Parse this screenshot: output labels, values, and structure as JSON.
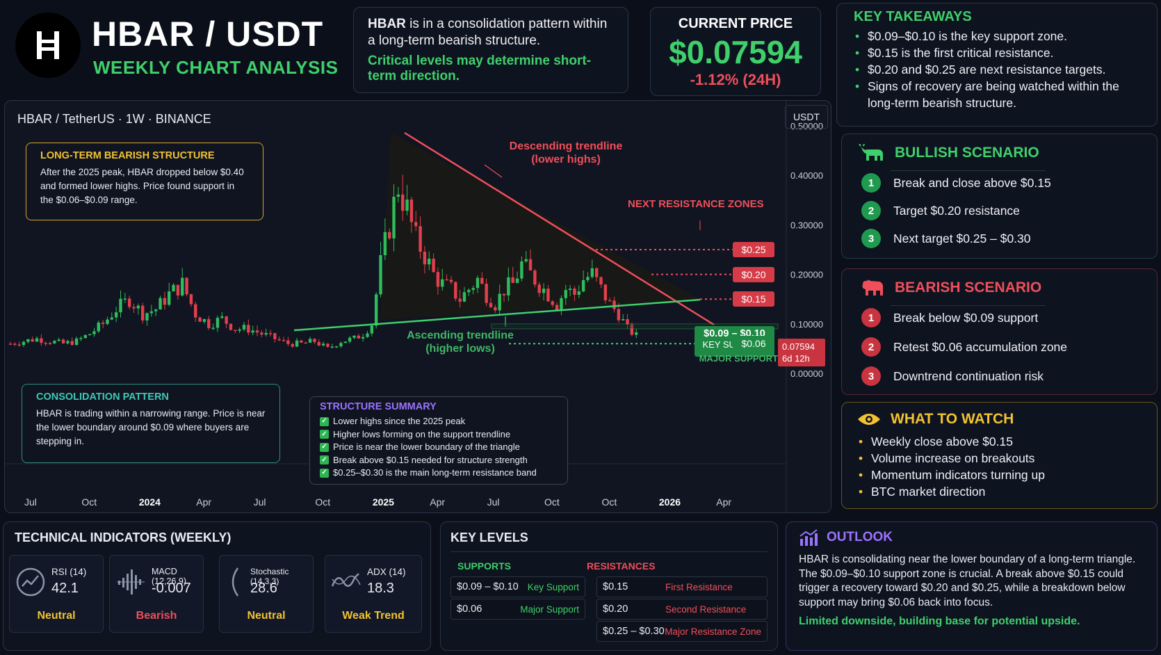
{
  "header": {
    "pair": "HBAR / USDT",
    "subtitle": "WEEKLY CHART ANALYSIS",
    "headline_prefix": "HBAR",
    "headline_rest": " is in a consolidation pattern within a long-term bearish structure.",
    "headline_green": "Critical levels may determine short-term direction."
  },
  "price": {
    "label": "CURRENT PRICE",
    "value": "$0.07594",
    "change": "-1.12% (24H)"
  },
  "takeaways": {
    "title": "KEY TAKEAWAYS",
    "items": [
      "$0.09–$0.10 is the key support zone.",
      "$0.15 is the first critical resistance.",
      "$0.20 and $0.25 are next resistance targets.",
      "Signs of recovery are being watched within the long-term bearish structure."
    ]
  },
  "bullish": {
    "title": "BULLISH SCENARIO",
    "steps": [
      "Break and close above $0.15",
      "Target $0.20 resistance",
      "Next target $0.25 – $0.30"
    ]
  },
  "bearish": {
    "title": "BEARISH SCENARIO",
    "steps": [
      "Break below $0.09 support",
      "Retest $0.06 accumulation zone",
      "Downtrend continuation risk"
    ]
  },
  "watch": {
    "title": "WHAT TO WATCH",
    "items": [
      "Weekly close above $0.15",
      "Volume increase on breakouts",
      "Momentum indicators turning up",
      "BTC market direction"
    ]
  },
  "chart": {
    "header": "HBAR / TetherUS · 1W · BINANCE",
    "unit": "USDT",
    "bearish_callout": {
      "title": "LONG-TERM BEARISH STRUCTURE",
      "body": "After the 2025 peak, HBAR dropped below $0.40 and formed lower highs. Price found support in the $0.06–$0.09 range."
    },
    "consolidation_callout": {
      "title": "CONSOLIDATION PATTERN",
      "body": "HBAR is trading within a narrowing range. Price is near the lower boundary around $0.09 where buyers are stepping in."
    },
    "summary": {
      "title": "STRUCTURE SUMMARY",
      "items": [
        "Lower highs since the 2025 peak",
        "Higher lows forming on the support trendline",
        "Price is near the lower boundary of the triangle",
        "Break above $0.15 needed for structure strength",
        "$0.25–$0.30 is the main long-term resistance band"
      ]
    },
    "descending_label_1": "Descending trendline",
    "descending_label_2": "(lower highs)",
    "ascending_label_1": "Ascending trendline",
    "ascending_label_2": "(higher lows)",
    "next_resistance_label": "NEXT RESISTANCE ZONES",
    "res_025": "$0.25",
    "res_020": "$0.20",
    "res_015": "$0.15",
    "support_range": "$0.09 – $0.10",
    "support_label": "KEY SUPPORT",
    "major_value": "$0.06",
    "major_label": "MAJOR SUPPORT",
    "price_tag": "0.07594",
    "countdown": "6d 12h"
  },
  "chart_data": {
    "type": "candlestick",
    "title": "HBAR / TetherUS · 1W · BINANCE",
    "ylabel": "USDT",
    "ylim": [
      0.0,
      0.5
    ],
    "yticks": [
      "0.50000",
      "0.40000",
      "0.30000",
      "0.20000",
      "0.10000",
      "0.00000"
    ],
    "ytick_values": [
      0.5,
      0.4,
      0.3,
      0.2,
      0.1,
      0.0
    ],
    "xticks": [
      "Jul",
      "Oct",
      "2024",
      "Apr",
      "Jul",
      "Oct",
      "2025",
      "Apr",
      "Jul",
      "Oct",
      "Oct",
      "2026",
      "Apr"
    ],
    "xtick_positions": [
      0,
      13,
      26,
      39,
      52,
      66,
      79,
      92,
      105,
      118,
      131,
      144,
      157
    ],
    "series": [
      {
        "name": "Close",
        "x": [
          0,
          3,
          6,
          9,
          12,
          15,
          18,
          21,
          24,
          27,
          30,
          33,
          36,
          39,
          42,
          45,
          48,
          51,
          54,
          57,
          60,
          63,
          66,
          69,
          72,
          75,
          78,
          80,
          82,
          84,
          86,
          88,
          90,
          92,
          94,
          96,
          98,
          100,
          102,
          104,
          106,
          108,
          110,
          112,
          114,
          116,
          118,
          120,
          122,
          124,
          126,
          128,
          130,
          132,
          134,
          136,
          138,
          140,
          142
        ],
        "close": [
          0.06,
          0.065,
          0.07,
          0.065,
          0.06,
          0.065,
          0.08,
          0.1,
          0.13,
          0.15,
          0.12,
          0.13,
          0.16,
          0.18,
          0.12,
          0.1,
          0.11,
          0.09,
          0.09,
          0.08,
          0.07,
          0.06,
          0.06,
          0.065,
          0.05,
          0.065,
          0.07,
          0.08,
          0.1,
          0.22,
          0.3,
          0.38,
          0.33,
          0.27,
          0.24,
          0.2,
          0.18,
          0.17,
          0.15,
          0.17,
          0.19,
          0.16,
          0.14,
          0.17,
          0.18,
          0.22,
          0.2,
          0.18,
          0.16,
          0.14,
          0.17,
          0.16,
          0.19,
          0.2,
          0.17,
          0.14,
          0.12,
          0.09,
          0.076
        ]
      }
    ],
    "levels": [
      {
        "name": "Major Resistance Zone",
        "value": 0.25
      },
      {
        "name": "Second Resistance",
        "value": 0.2
      },
      {
        "name": "First Resistance",
        "value": 0.15
      },
      {
        "name": "Key Support",
        "value": 0.095
      },
      {
        "name": "Major Support",
        "value": 0.06
      }
    ],
    "current_price": 0.07594
  },
  "indicators": {
    "title": "TECHNICAL INDICATORS (WEEKLY)",
    "items": [
      {
        "name": "RSI (14)",
        "value": "42.1",
        "status": "Neutral",
        "color": "#f2c230",
        "icon": "rsi-gauge-icon"
      },
      {
        "name": "MACD (12,26,9)",
        "value": "-0.007",
        "status": "Bearish",
        "color": "#ef4f5a",
        "icon": "macd-histogram-icon"
      },
      {
        "name": "Stochastic (14,3,3)",
        "value": "28.6",
        "status": "Neutral",
        "color": "#f2c230",
        "icon": "stochastic-curve-icon"
      },
      {
        "name": "ADX (14)",
        "value": "18.3",
        "status": "Weak Trend",
        "color": "#f2c230",
        "icon": "adx-wave-icon"
      }
    ]
  },
  "levels": {
    "title": "KEY LEVELS",
    "supports_title": "SUPPORTS",
    "resistances_title": "RESISTANCES",
    "supports": [
      {
        "price": "$0.09 – $0.10",
        "desc": "Key Support"
      },
      {
        "price": "$0.06",
        "desc": "Major Support"
      }
    ],
    "resistances": [
      {
        "price": "$0.15",
        "desc": "First Resistance"
      },
      {
        "price": "$0.20",
        "desc": "Second Resistance"
      },
      {
        "price": "$0.25 – $0.30",
        "desc": "Major Resistance Zone"
      }
    ]
  },
  "outlook": {
    "title": "OUTLOOK",
    "body": "HBAR is consolidating near the lower boundary of a long-term triangle. The $0.09–$0.10 support zone is crucial. A break above $0.15 could trigger a recovery toward $0.20 and $0.25, while a breakdown below support may bring $0.06 back into focus.",
    "conclusion": "Limited downside, building base for potential upside."
  },
  "colors": {
    "green": "#3fd06b",
    "red": "#ef4f5a",
    "yellow": "#f2c230",
    "purple": "#9b73ff"
  }
}
